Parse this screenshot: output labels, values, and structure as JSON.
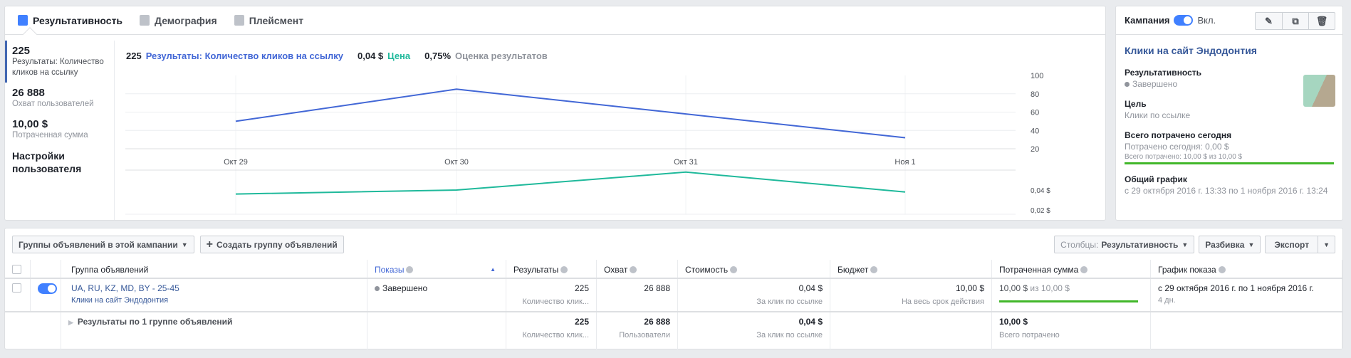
{
  "tabs": [
    {
      "label": "Результативность",
      "icon": "bar-chart-icon"
    },
    {
      "label": "Демография",
      "icon": "people-icon"
    },
    {
      "label": "Плейсмент",
      "icon": "placement-icon"
    }
  ],
  "metrics": [
    {
      "value": "225",
      "label": "Результаты: Количество кликов на ссылку"
    },
    {
      "value": "26 888",
      "label": "Охват пользователей"
    },
    {
      "value": "10,00 $",
      "label": "Потраченная сумма"
    }
  ],
  "custom_settings": "Настройки пользователя",
  "chart_header": {
    "results_value": "225",
    "results_label": "Результаты: Количество кликов на ссылку",
    "price_value": "0,04 $",
    "price_label": "Цена",
    "score_value": "0,75%",
    "score_label": "Оценка результатов"
  },
  "colors": {
    "results": "#4267d6",
    "price": "#1fb99b",
    "progress": "#42b72a"
  },
  "chart_data": [
    {
      "type": "line",
      "title": "Результаты: Количество кликов на ссылку",
      "categories": [
        "Окт 29",
        "Окт 30",
        "Окт 31",
        "Ноя 1"
      ],
      "values": [
        50,
        85,
        58,
        32
      ],
      "ylim": [
        20,
        100
      ],
      "yticks": [
        "100",
        "80",
        "60",
        "40",
        "20"
      ],
      "grid": true
    },
    {
      "type": "line",
      "title": "Цена",
      "categories": [
        "Окт 29",
        "Окт 30",
        "Окт 31",
        "Ноя 1"
      ],
      "values": [
        0.036,
        0.04,
        0.058,
        0.038
      ],
      "ylim": [
        0.02,
        0.06
      ],
      "yticks": [
        "0,04 $",
        "0,02 $"
      ],
      "grid": true
    }
  ],
  "side": {
    "campaign_label": "Кампания",
    "toggle_label": "Вкл.",
    "title": "Клики на сайт Эндодонтия",
    "perf_label": "Результативность",
    "perf_status": "Завершено",
    "goal_label": "Цель",
    "goal_value": "Клики по ссылке",
    "spent_label": "Всего потрачено сегодня",
    "spent_today": "Потрачено сегодня: 0,00 $",
    "spent_total": "Всего потрачено: 10,00 $ из 10,00 $",
    "spent_fraction": 1.0,
    "schedule_label": "Общий график",
    "schedule_value": "с 29 октября 2016 г. 13:33 по 1 ноября 2016 г. 13:24"
  },
  "toolbar": {
    "adsets_dropdown": "Группы объявлений в этой кампании",
    "create": "Создать группу объявлений",
    "columns_prefix": "Столбцы:",
    "columns_value": "Результативность",
    "breakdown": "Разбивка",
    "export": "Экспорт"
  },
  "table": {
    "headers": [
      "Группа объявлений",
      "Показы",
      "Результаты",
      "Охват",
      "Стоимость",
      "Бюджет",
      "Потраченная сумма",
      "График показа"
    ],
    "row": {
      "name": "UA, RU, KZ, MD, BY - 25-45",
      "campaign": "Клики на сайт Эндодонтия",
      "delivery": "Завершено",
      "results": "225",
      "results_sub": "Количество клик...",
      "reach": "26 888",
      "cost": "0,04 $",
      "cost_sub": "За клик по ссылке",
      "budget": "10,00 $",
      "budget_sub": "На весь срок действия",
      "spent": "10,00 $",
      "spent_of": "из 10,00 $",
      "spent_fraction": 1.0,
      "schedule": "с 29 октября 2016 г. по 1 ноября 2016 г.",
      "schedule_sub": "4 дн."
    },
    "total": {
      "label": "Результаты по 1 группе объявлений",
      "results": "225",
      "results_sub": "Количество клик...",
      "reach": "26 888",
      "reach_sub": "Пользователи",
      "cost": "0,04 $",
      "cost_sub": "За клик по ссылке",
      "spent": "10,00 $",
      "spent_sub": "Всего потрачено"
    }
  }
}
